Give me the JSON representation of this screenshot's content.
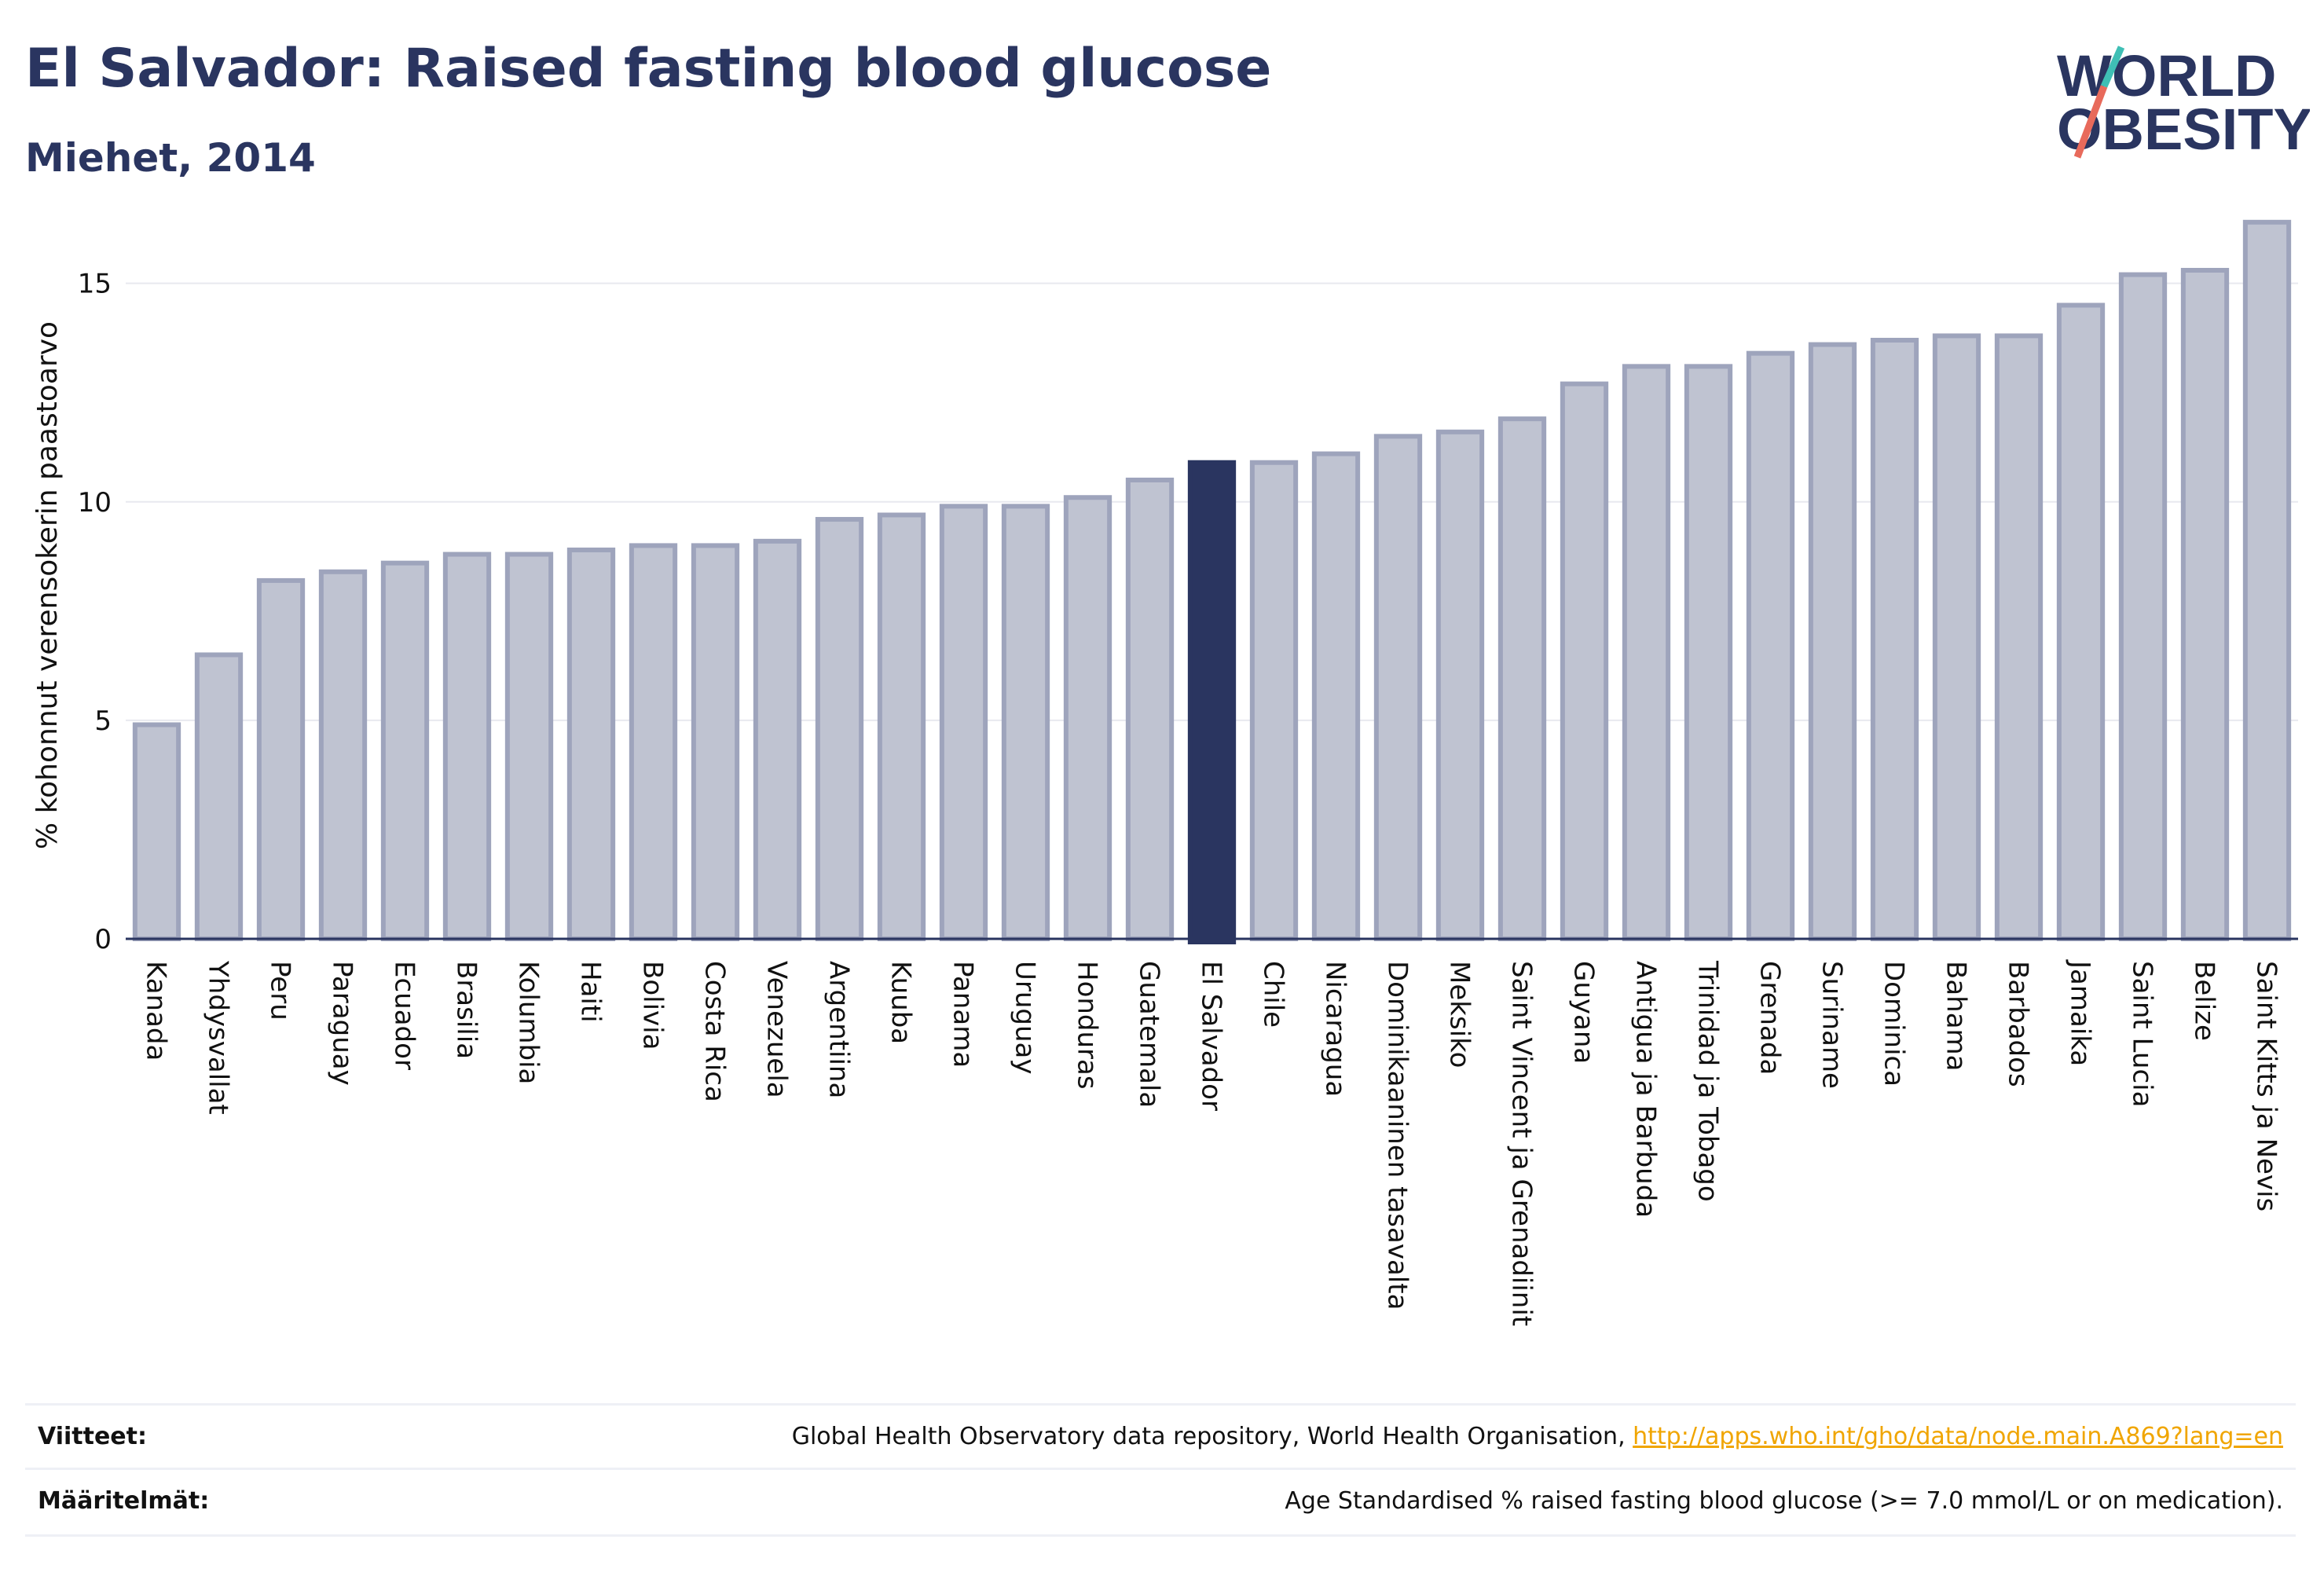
{
  "header": {
    "title": "El Salvador: Raised fasting blood glucose",
    "subtitle": "Miehet, 2014",
    "logo_text_line1": "WORLD",
    "logo_text_line2": "OBESITY"
  },
  "colors": {
    "bar_fill": "#bfc3d1",
    "bar_stroke": "#9ea4bc",
    "highlight": "#2a3560",
    "grid": "#e8e9ef",
    "logo_teal": "#3fbfb5",
    "logo_coral": "#e86a5b"
  },
  "chart_data": {
    "type": "bar",
    "ylabel": "% kohonnut verensokerin paastoarvo",
    "xlabel": "",
    "ylim": [
      0,
      16.9
    ],
    "yticks": [
      0,
      5,
      10,
      15
    ],
    "grid": true,
    "highlight_category": "El Salvador",
    "categories": [
      "Kanada",
      "Yhdysvallat",
      "Peru",
      "Paraguay",
      "Ecuador",
      "Brasilia",
      "Kolumbia",
      "Haiti",
      "Bolivia",
      "Costa Rica",
      "Venezuela",
      "Argentiina",
      "Kuuba",
      "Panama",
      "Uruguay",
      "Honduras",
      "Guatemala",
      "El Salvador",
      "Chile",
      "Nicaragua",
      "Dominikaaninen tasavalta",
      "Meksiko",
      "Saint Vincent ja Grenadiinit",
      "Guyana",
      "Antigua ja Barbuda",
      "Trinidad ja Tobago",
      "Grenada",
      "Suriname",
      "Dominica",
      "Bahama",
      "Barbados",
      "Jamaika",
      "Saint Lucia",
      "Belize",
      "Saint Kitts ja Nevis"
    ],
    "values": [
      4.9,
      6.5,
      8.2,
      8.4,
      8.6,
      8.8,
      8.8,
      8.9,
      9.0,
      9.0,
      9.1,
      9.6,
      9.7,
      9.9,
      9.9,
      10.1,
      10.5,
      10.9,
      10.9,
      11.1,
      11.5,
      11.6,
      11.9,
      12.7,
      13.1,
      13.1,
      13.4,
      13.6,
      13.7,
      13.8,
      13.8,
      14.5,
      15.2,
      15.3,
      16.4
    ]
  },
  "footer": {
    "sources_label": "Viitteet:",
    "sources_text": "Global Health Observatory data repository, World Health Organisation, ",
    "sources_link": "http://apps.who.int/gho/data/node.main.A869?lang=en",
    "definitions_label": "Määritelmät:",
    "definitions_text": "Age Standardised % raised fasting blood glucose (>= 7.0 mmol/L or on medication)."
  }
}
